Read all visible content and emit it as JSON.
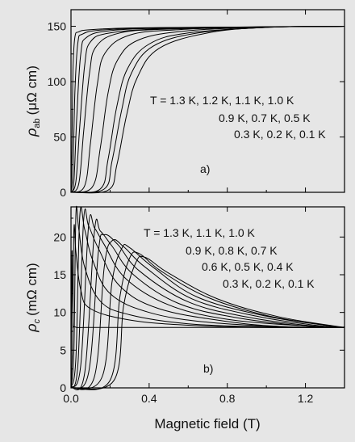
{
  "figure": {
    "xlabel": "Magnetic field (T)",
    "background": "#e6e6e6",
    "line_color": "#000000"
  },
  "chart_data": [
    {
      "type": "line",
      "panel_label": "a)",
      "ylabel_symbol": "ρ",
      "ylabel_subscript": "ab",
      "ylabel_unit": "(μΩ cm)",
      "xlim": [
        0,
        1.4
      ],
      "ylim": [
        0,
        165
      ],
      "yticks": [
        0,
        50,
        100,
        150
      ],
      "xticks": [
        0,
        0.4,
        0.8,
        1.2
      ],
      "annotation_lines": [
        "T = 1.3 K, 1.2 K, 1.1 K, 1.0 K",
        "0.9 K, 0.7 K, 0.5 K",
        "0.3 K, 0.2 K, 0.1 K"
      ],
      "series": [
        {
          "values": [
            [
              0,
              0
            ],
            [
              0.005,
              40
            ],
            [
              0.01,
              110
            ],
            [
              0.02,
              140
            ],
            [
              0.04,
              145
            ],
            [
              0.1,
              147
            ],
            [
              0.3,
              148.5
            ],
            [
              0.6,
              149
            ],
            [
              1.0,
              149.5
            ],
            [
              1.4,
              150
            ]
          ]
        },
        {
          "values": [
            [
              0,
              0
            ],
            [
              0.01,
              20
            ],
            [
              0.02,
              90
            ],
            [
              0.035,
              135
            ],
            [
              0.06,
              143
            ],
            [
              0.15,
              146.5
            ],
            [
              0.4,
              148.5
            ],
            [
              0.8,
              149.2
            ],
            [
              1.4,
              150
            ]
          ]
        },
        {
          "values": [
            [
              0,
              0
            ],
            [
              0.015,
              10
            ],
            [
              0.03,
              70
            ],
            [
              0.05,
              125
            ],
            [
              0.08,
              140
            ],
            [
              0.2,
              146
            ],
            [
              0.5,
              148.5
            ],
            [
              1.0,
              149.5
            ],
            [
              1.4,
              150
            ]
          ]
        },
        {
          "values": [
            [
              0,
              0
            ],
            [
              0.025,
              10
            ],
            [
              0.045,
              60
            ],
            [
              0.07,
              115
            ],
            [
              0.1,
              136
            ],
            [
              0.2,
              144
            ],
            [
              0.5,
              148
            ],
            [
              1.0,
              149.5
            ],
            [
              1.4,
              150
            ]
          ]
        },
        {
          "values": [
            [
              0,
              0
            ],
            [
              0.04,
              8
            ],
            [
              0.065,
              55
            ],
            [
              0.095,
              108
            ],
            [
              0.13,
              132
            ],
            [
              0.25,
              144
            ],
            [
              0.5,
              147.5
            ],
            [
              1.0,
              149.5
            ],
            [
              1.4,
              150
            ]
          ]
        },
        {
          "values": [
            [
              0,
              0
            ],
            [
              0.07,
              6
            ],
            [
              0.1,
              45
            ],
            [
              0.135,
              98
            ],
            [
              0.175,
              126
            ],
            [
              0.3,
              142
            ],
            [
              0.55,
              147
            ],
            [
              1.0,
              149.5
            ],
            [
              1.4,
              150
            ]
          ]
        },
        {
          "values": [
            [
              0,
              0
            ],
            [
              0.11,
              5
            ],
            [
              0.15,
              40
            ],
            [
              0.19,
              90
            ],
            [
              0.24,
              120
            ],
            [
              0.35,
              138
            ],
            [
              0.6,
              146
            ],
            [
              1.0,
              149.3
            ],
            [
              1.4,
              150
            ]
          ]
        },
        {
          "values": [
            [
              0,
              0
            ],
            [
              0.15,
              3
            ],
            [
              0.19,
              30
            ],
            [
              0.235,
              78
            ],
            [
              0.29,
              112
            ],
            [
              0.4,
              134
            ],
            [
              0.6,
              144
            ],
            [
              1.0,
              149
            ],
            [
              1.4,
              150
            ]
          ]
        },
        {
          "values": [
            [
              0,
              0
            ],
            [
              0.17,
              3
            ],
            [
              0.21,
              28
            ],
            [
              0.26,
              75
            ],
            [
              0.31,
              108
            ],
            [
              0.42,
              132
            ],
            [
              0.65,
              144
            ],
            [
              1.0,
              149
            ],
            [
              1.4,
              150
            ]
          ]
        },
        {
          "values": [
            [
              0,
              0
            ],
            [
              0.19,
              2
            ],
            [
              0.235,
              25
            ],
            [
              0.285,
              70
            ],
            [
              0.34,
              104
            ],
            [
              0.45,
              130
            ],
            [
              0.7,
              144
            ],
            [
              1.0,
              149
            ],
            [
              1.4,
              150
            ]
          ]
        }
      ]
    },
    {
      "type": "line",
      "panel_label": "b)",
      "ylabel_symbol": "ρ",
      "ylabel_subscript": "c",
      "ylabel_unit": "(mΩ cm)",
      "xlim": [
        0,
        1.4
      ],
      "ylim": [
        0,
        24
      ],
      "yticks": [
        0,
        5,
        10,
        15,
        20
      ],
      "xticks": [
        0,
        0.4,
        0.8,
        1.2
      ],
      "xticklabels": [
        "0.0",
        "0.4",
        "0.8",
        "1.2"
      ],
      "annotation_lines": [
        "T = 1.3 K, 1.1 K, 1.0 K",
        "0.9 K, 0.8 K, 0.7 K",
        "0.6 K, 0.5 K, 0.4 K",
        "0.3 K, 0.2 K, 0.1 K"
      ],
      "series": [
        {
          "values": [
            [
              0,
              0
            ],
            [
              0.005,
              18
            ],
            [
              0.01,
              9
            ],
            [
              0.02,
              8.1
            ],
            [
              0.1,
              8
            ],
            [
              0.5,
              8
            ],
            [
              1.0,
              8
            ],
            [
              1.4,
              8
            ]
          ]
        },
        {
          "values": [
            [
              0,
              0
            ],
            [
              0.008,
              6
            ],
            [
              0.015,
              21
            ],
            [
              0.025,
              18
            ],
            [
              0.05,
              13
            ],
            [
              0.1,
              10.5
            ],
            [
              0.3,
              9
            ],
            [
              0.6,
              8.3
            ],
            [
              1.0,
              8
            ],
            [
              1.4,
              8
            ]
          ]
        },
        {
          "values": [
            [
              0,
              0
            ],
            [
              0.015,
              5
            ],
            [
              0.025,
              23
            ],
            [
              0.04,
              21
            ],
            [
              0.07,
              16
            ],
            [
              0.15,
              11.5
            ],
            [
              0.3,
              9.7
            ],
            [
              0.6,
              8.5
            ],
            [
              1.0,
              8.1
            ],
            [
              1.4,
              8
            ]
          ]
        },
        {
          "values": [
            [
              0,
              0
            ],
            [
              0.025,
              4
            ],
            [
              0.045,
              22.8
            ],
            [
              0.07,
              21
            ],
            [
              0.11,
              17
            ],
            [
              0.2,
              12.5
            ],
            [
              0.4,
              10
            ],
            [
              0.7,
              8.7
            ],
            [
              1.1,
              8.1
            ],
            [
              1.4,
              8
            ]
          ]
        },
        {
          "values": [
            [
              0,
              0
            ],
            [
              0.035,
              3
            ],
            [
              0.065,
              22.3
            ],
            [
              0.09,
              21.5
            ],
            [
              0.14,
              18.5
            ],
            [
              0.25,
              13.5
            ],
            [
              0.45,
              10.5
            ],
            [
              0.8,
              8.8
            ],
            [
              1.1,
              8.1
            ],
            [
              1.4,
              8
            ]
          ]
        },
        {
          "values": [
            [
              0,
              0
            ],
            [
              0.05,
              3
            ],
            [
              0.09,
              21.5
            ],
            [
              0.12,
              21.2
            ],
            [
              0.17,
              19
            ],
            [
              0.28,
              14.5
            ],
            [
              0.5,
              11
            ],
            [
              0.8,
              9.1
            ],
            [
              1.2,
              8.2
            ],
            [
              1.4,
              8
            ]
          ]
        },
        {
          "values": [
            [
              0,
              0
            ],
            [
              0.07,
              2
            ],
            [
              0.12,
              20.8
            ],
            [
              0.15,
              20.8
            ],
            [
              0.21,
              18.8
            ],
            [
              0.32,
              15
            ],
            [
              0.55,
              11.2
            ],
            [
              0.85,
              9.3
            ],
            [
              1.2,
              8.2
            ],
            [
              1.4,
              8
            ]
          ]
        },
        {
          "values": [
            [
              0,
              0
            ],
            [
              0.09,
              2
            ],
            [
              0.14,
              18
            ],
            [
              0.17,
              20.3
            ],
            [
              0.24,
              19
            ],
            [
              0.35,
              15.5
            ],
            [
              0.6,
              11.4
            ],
            [
              0.9,
              9.4
            ],
            [
              1.2,
              8.3
            ],
            [
              1.4,
              8
            ]
          ]
        },
        {
          "values": [
            [
              0,
              0
            ],
            [
              0.12,
              1.5
            ],
            [
              0.17,
              16
            ],
            [
              0.21,
              19.5
            ],
            [
              0.27,
              18.7
            ],
            [
              0.38,
              16
            ],
            [
              0.62,
              11.8
            ],
            [
              0.95,
              9.5
            ],
            [
              1.25,
              8.3
            ],
            [
              1.4,
              8
            ]
          ]
        },
        {
          "values": [
            [
              0,
              0
            ],
            [
              0.16,
              1.5
            ],
            [
              0.21,
              14
            ],
            [
              0.26,
              18.5
            ],
            [
              0.3,
              18.6
            ],
            [
              0.42,
              16
            ],
            [
              0.65,
              12
            ],
            [
              1.0,
              9.5
            ],
            [
              1.3,
              8.3
            ],
            [
              1.4,
              8
            ]
          ]
        },
        {
          "values": [
            [
              0,
              0
            ],
            [
              0.2,
              1
            ],
            [
              0.25,
              12
            ],
            [
              0.3,
              17.2
            ],
            [
              0.35,
              17.8
            ],
            [
              0.46,
              15.5
            ],
            [
              0.7,
              12
            ],
            [
              1.0,
              9.6
            ],
            [
              1.3,
              8.3
            ],
            [
              1.4,
              8
            ]
          ]
        },
        {
          "values": [
            [
              0,
              0
            ],
            [
              0.22,
              1
            ],
            [
              0.27,
              11
            ],
            [
              0.33,
              16.5
            ],
            [
              0.38,
              17.3
            ],
            [
              0.5,
              15.2
            ],
            [
              0.75,
              11.8
            ],
            [
              1.05,
              9.5
            ],
            [
              1.35,
              8.2
            ],
            [
              1.4,
              8.1
            ]
          ]
        }
      ]
    }
  ]
}
